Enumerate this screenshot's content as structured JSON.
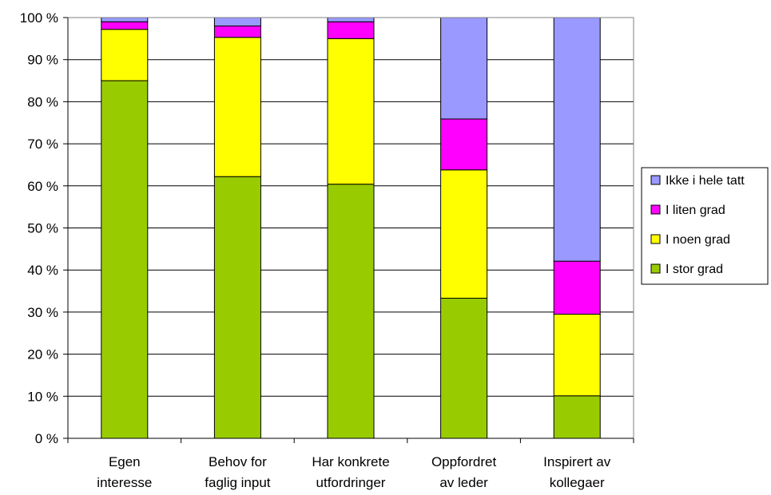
{
  "chart_data": {
    "type": "bar",
    "stacked": true,
    "categories": [
      [
        "Egen",
        "interesse"
      ],
      [
        "Behov for",
        "faglig input"
      ],
      [
        "Har konkrete",
        "utfordringer"
      ],
      [
        "Oppfordret",
        "av leder"
      ],
      [
        "Inspirert av",
        "kollegaer"
      ]
    ],
    "series": [
      {
        "name": "I stor grad",
        "color": "#99cc00",
        "values": [
          85.0,
          62.2,
          60.4,
          33.3,
          10.1
        ]
      },
      {
        "name": "I noen grad",
        "color": "#ffff00",
        "values": [
          12.2,
          33.1,
          34.6,
          30.5,
          19.4
        ]
      },
      {
        "name": "I liten grad",
        "color": "#ff00ff",
        "values": [
          1.8,
          2.7,
          4.0,
          12.1,
          12.6
        ]
      },
      {
        "name": "Ikke i hele tatt",
        "color": "#9999ff",
        "values": [
          1.0,
          2.0,
          1.0,
          24.1,
          57.9
        ]
      }
    ],
    "legend_order": [
      "Ikke i hele tatt",
      "I liten grad",
      "I noen grad",
      "I stor grad"
    ],
    "y_ticks": [
      "0 %",
      "10 %",
      "20 %",
      "30 %",
      "40 %",
      "50 %",
      "60 %",
      "70 %",
      "80 %",
      "90 %",
      "100 %"
    ],
    "ylim": [
      0,
      100
    ],
    "grid": true,
    "legend_position": "right"
  }
}
